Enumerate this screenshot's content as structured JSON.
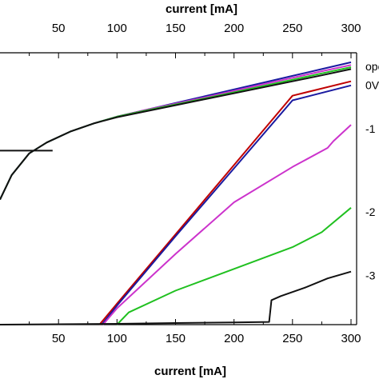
{
  "chart_data": {
    "type": "line",
    "xlabel": "current [mA]",
    "xlabel_top": "current [mA]",
    "xlim": [
      0,
      310
    ],
    "ylim": [
      0,
      100
    ],
    "x_ticks": [
      50,
      100,
      150,
      200,
      250,
      300
    ],
    "top_x_ticks": [
      50,
      100,
      150,
      200,
      250,
      300
    ],
    "grid": false,
    "series": [
      {
        "label": "ope",
        "color": "#1a1aa0",
        "points": [
          [
            0,
            46
          ],
          [
            10,
            55
          ],
          [
            25,
            63
          ],
          [
            40,
            67
          ],
          [
            60,
            71
          ],
          [
            80,
            74
          ],
          [
            100,
            76.5
          ],
          [
            125,
            79
          ],
          [
            150,
            81.5
          ],
          [
            175,
            84
          ],
          [
            200,
            86.5
          ],
          [
            225,
            89
          ],
          [
            250,
            91.5
          ],
          [
            275,
            94
          ],
          [
            300,
            96.5
          ]
        ]
      },
      {
        "color": "#cc33cc",
        "points": [
          [
            0,
            46
          ],
          [
            10,
            55
          ],
          [
            25,
            63
          ],
          [
            40,
            67
          ],
          [
            60,
            71
          ],
          [
            80,
            74
          ],
          [
            100,
            76.5
          ],
          [
            125,
            79
          ],
          [
            150,
            81.3
          ],
          [
            175,
            83.6
          ],
          [
            200,
            86
          ],
          [
            225,
            88.4
          ],
          [
            250,
            90.8
          ],
          [
            275,
            93.2
          ],
          [
            300,
            95.5
          ]
        ]
      },
      {
        "color": "#20c020",
        "points": [
          [
            0,
            46
          ],
          [
            10,
            55
          ],
          [
            25,
            63
          ],
          [
            40,
            67
          ],
          [
            60,
            71
          ],
          [
            80,
            74
          ],
          [
            100,
            76.5
          ],
          [
            125,
            78.8
          ],
          [
            150,
            81
          ],
          [
            175,
            83.2
          ],
          [
            200,
            85.5
          ],
          [
            225,
            87.8
          ],
          [
            250,
            90.1
          ],
          [
            275,
            92.4
          ],
          [
            300,
            94.7
          ]
        ]
      },
      {
        "color": "#111111",
        "points": [
          [
            0,
            46
          ],
          [
            10,
            55
          ],
          [
            25,
            63
          ],
          [
            40,
            67
          ],
          [
            60,
            71
          ],
          [
            80,
            74
          ],
          [
            100,
            76.3
          ],
          [
            125,
            78.5
          ],
          [
            150,
            80.7
          ],
          [
            175,
            82.9
          ],
          [
            200,
            85.1
          ],
          [
            225,
            87.3
          ],
          [
            250,
            89.5
          ],
          [
            275,
            91.7
          ],
          [
            300,
            94
          ]
        ]
      },
      {
        "label": "0V",
        "color": "#c00000",
        "points": [
          [
            85,
            0
          ],
          [
            100,
            7.7
          ],
          [
            150,
            33.2
          ],
          [
            200,
            58.7
          ],
          [
            250,
            84.2
          ],
          [
            300,
            89.5
          ]
        ]
      },
      {
        "color": "#1a1aa0",
        "points": [
          [
            87,
            0
          ],
          [
            100,
            7
          ],
          [
            150,
            32.5
          ],
          [
            200,
            57.5
          ],
          [
            250,
            82.5
          ],
          [
            300,
            88
          ]
        ]
      },
      {
        "label": "-1",
        "color": "#cc33cc",
        "points": [
          [
            88,
            0
          ],
          [
            100,
            6
          ],
          [
            150,
            26
          ],
          [
            200,
            45
          ],
          [
            250,
            58
          ],
          [
            280,
            65
          ],
          [
            285,
            67.5
          ],
          [
            300,
            73.5
          ]
        ]
      },
      {
        "label": "-2",
        "color": "#20c020",
        "points": [
          [
            100,
            0
          ],
          [
            110,
            4.5
          ],
          [
            150,
            12.5
          ],
          [
            200,
            20.5
          ],
          [
            250,
            28.5
          ],
          [
            275,
            34
          ],
          [
            300,
            43
          ]
        ]
      },
      {
        "label": "-3",
        "color": "#111111",
        "points": [
          [
            0,
            0
          ],
          [
            100,
            0.3
          ],
          [
            150,
            0.6
          ],
          [
            200,
            0.8
          ],
          [
            230,
            1
          ],
          [
            232,
            9
          ],
          [
            240,
            10.5
          ],
          [
            260,
            13.5
          ],
          [
            280,
            17
          ],
          [
            300,
            19.5
          ]
        ]
      },
      {
        "color": "#111111",
        "points": [
          [
            0,
            64
          ],
          [
            45,
            64
          ]
        ]
      }
    ]
  }
}
